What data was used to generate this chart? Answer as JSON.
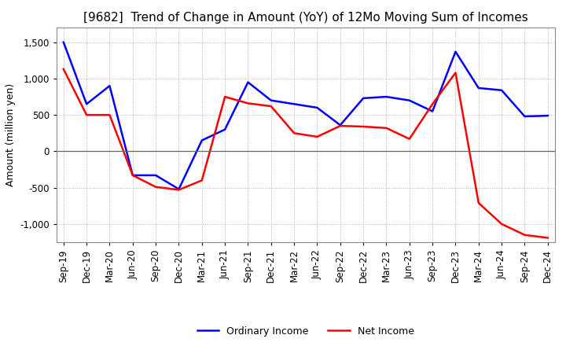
{
  "title": "[9682]  Trend of Change in Amount (YoY) of 12Mo Moving Sum of Incomes",
  "ylabel": "Amount (million yen)",
  "xlabels": [
    "Sep-19",
    "Dec-19",
    "Mar-20",
    "Jun-20",
    "Sep-20",
    "Dec-20",
    "Mar-21",
    "Jun-21",
    "Sep-21",
    "Dec-21",
    "Mar-22",
    "Jun-22",
    "Sep-22",
    "Dec-22",
    "Mar-23",
    "Jun-23",
    "Sep-23",
    "Dec-23",
    "Mar-24",
    "Jun-24",
    "Sep-24",
    "Dec-24"
  ],
  "ordinary_income": [
    1500,
    650,
    900,
    -330,
    -330,
    -520,
    150,
    300,
    950,
    700,
    650,
    600,
    360,
    730,
    750,
    700,
    550,
    1370,
    870,
    840,
    480,
    490
  ],
  "net_income": [
    1130,
    500,
    500,
    -330,
    -490,
    -530,
    -400,
    750,
    660,
    620,
    250,
    200,
    350,
    340,
    320,
    170,
    650,
    1080,
    -710,
    -1000,
    -1150,
    -1190
  ],
  "ordinary_color": "#0000ff",
  "net_color": "#ff0000",
  "ylim": [
    -1250,
    1700
  ],
  "yticks": [
    -1000,
    -500,
    0,
    500,
    1000,
    1500
  ],
  "background_color": "#ffffff",
  "grid_color": "#b0b0b0",
  "title_fontsize": 11,
  "axis_fontsize": 9,
  "tick_fontsize": 8.5,
  "legend_fontsize": 9
}
